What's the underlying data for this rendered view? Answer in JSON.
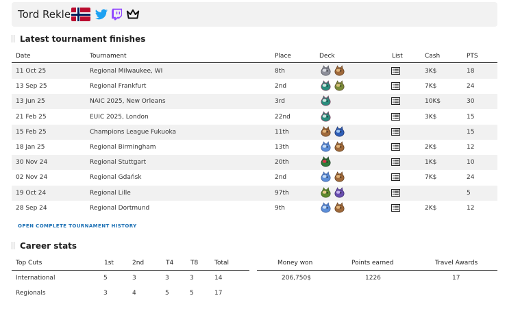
{
  "player": {
    "name": "Tord Reklev",
    "flag": "norway-flag",
    "links": [
      "twitter-icon",
      "twitch-icon",
      "crown-icon"
    ]
  },
  "latest": {
    "title": "Latest tournament finishes",
    "headers": {
      "date": "Date",
      "tournament": "Tournament",
      "place": "Place",
      "deck": "Deck",
      "list": "List",
      "cash": "Cash",
      "pts": "PTS"
    },
    "rows": [
      {
        "date": "11 Oct 25",
        "tournament": "Regional Milwaukee, WI",
        "place": "8th",
        "deck": [
          "grey-pokemon-sprite",
          "brown-pokemon-sprite"
        ],
        "cash": "3K$",
        "pts": "18"
      },
      {
        "date": "13 Sep 25",
        "tournament": "Regional Frankfurt",
        "place": "2nd",
        "deck": [
          "teal-dragon-sprite",
          "bird-pokemon-sprite"
        ],
        "cash": "7K$",
        "pts": "24"
      },
      {
        "date": "13 Jun 25",
        "tournament": "NAIC 2025, New Orleans",
        "place": "3rd",
        "deck": [
          "teal-dragon-sprite"
        ],
        "cash": "10K$",
        "pts": "30"
      },
      {
        "date": "21 Feb 25",
        "tournament": "EUIC 2025, London",
        "place": "22nd",
        "deck": [
          "teal-dragon-sprite"
        ],
        "cash": "3K$",
        "pts": "15"
      },
      {
        "date": "15 Feb 25",
        "tournament": "Champions League Fukuoka",
        "place": "11th",
        "deck": [
          "brown-pokemon-sprite",
          "blue-pokemon-sprite"
        ],
        "cash": "",
        "pts": "15"
      },
      {
        "date": "18 Jan 25",
        "tournament": "Regional Birmingham",
        "place": "13th",
        "deck": [
          "blue-dragon-sprite",
          "brown-pokemon-sprite"
        ],
        "cash": "2K$",
        "pts": "12"
      },
      {
        "date": "30 Nov 24",
        "tournament": "Regional Stuttgart",
        "place": "20th",
        "deck": [
          "red-green-pokemon-sprite"
        ],
        "cash": "1K$",
        "pts": "10"
      },
      {
        "date": "02 Nov 24",
        "tournament": "Regional Gdańsk",
        "place": "2nd",
        "deck": [
          "blue-dragon-sprite",
          "brown-pokemon-sprite"
        ],
        "cash": "7K$",
        "pts": "24"
      },
      {
        "date": "19 Oct 24",
        "tournament": "Regional Lille",
        "place": "97th",
        "deck": [
          "green-pokemon-sprite",
          "purple-pokemon-sprite"
        ],
        "cash": "",
        "pts": "5"
      },
      {
        "date": "28 Sep 24",
        "tournament": "Regional Dortmund",
        "place": "9th",
        "deck": [
          "blue-dragon-sprite",
          "brown-pokemon-sprite"
        ],
        "cash": "2K$",
        "pts": "12"
      }
    ],
    "history_link": "OPEN COMPLETE TOURNAMENT HISTORY"
  },
  "career": {
    "title": "Career stats",
    "headers": {
      "top_cuts": "Top Cuts",
      "first": "1st",
      "second": "2nd",
      "t4": "T4",
      "t8": "T8",
      "total": "Total",
      "money": "Money won",
      "points": "Points earned",
      "travel": "Travel Awards"
    },
    "rows": [
      {
        "label": "International",
        "first": "5",
        "second": "3",
        "t4": "3",
        "t8": "3",
        "total": "14"
      },
      {
        "label": "Regionals",
        "first": "3",
        "second": "4",
        "t4": "5",
        "t8": "5",
        "total": "17"
      }
    ],
    "money": "206,750$",
    "points": "1226",
    "travel": "17"
  },
  "colors": {
    "accent_link": "#1a6fb4",
    "twitter": "#1da1f2",
    "twitch": "#9146ff",
    "flag_red": "#ba0c2f",
    "flag_blue": "#00205b"
  }
}
